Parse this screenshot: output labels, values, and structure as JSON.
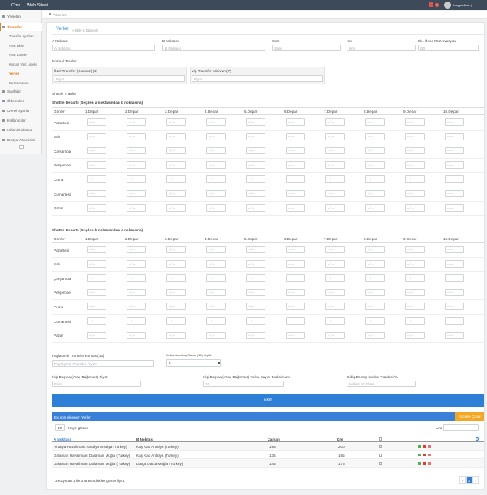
{
  "topbar": {
    "brand": "Cms",
    "site": "Web Sitesi",
    "badge": "3",
    "user": "Hoşgeldiniz |"
  },
  "sidebar": {
    "items": [
      "Yönetim",
      "Transfer",
      "Sayfalar",
      "Ödemeler",
      "Genel Ayarlar",
      "Kullanıcılar",
      "Video/Galeriler",
      "Dosya Yöneticisi"
    ],
    "submenu": [
      "Transfer Ayarları",
      "Araç Ekle",
      "Araç Listele",
      "Konum Yeri Listele",
      "Yerler",
      "Rezervasyon"
    ]
  },
  "breadcrumb": "Yönetim",
  "form": {
    "title": "Yerler",
    "subtitle": "» Ekle & Düzenle",
    "fields": [
      {
        "label": "A Noktası",
        "placeholder": "A Noktası"
      },
      {
        "label": "B Noktası",
        "placeholder": "B Noktası"
      },
      {
        "label": "Süre",
        "placeholder": "Süre"
      },
      {
        "label": "Km",
        "placeholder": "Km"
      },
      {
        "label": "Ek. Önce Rezervasyon",
        "placeholder": "00"
      }
    ],
    "normal_title": "Normal Tranfer",
    "vehicles": [
      {
        "label": "Özel Transfer (Sonsuz) (3)",
        "placeholder": "Fiyat"
      },
      {
        "label": "Vip Transfer Minivan (7)",
        "placeholder": "Fiyat"
      }
    ],
    "shuttle_title": "Shuttle Tranfer",
    "departure_tables": [
      "Shuttle Departı (Seçilen a noktasından b noktasına)",
      "Shuttle Departı (Seçilen b noktasından a noktasına)"
    ],
    "columns": [
      "Günler",
      "1.Depar",
      "2.Depar",
      "3.Depar",
      "4.Depar",
      "5.Depar",
      "6.Depar",
      "7.Depar",
      "8.Depar",
      "9.Depar",
      "10.Depar"
    ],
    "days": [
      "Pazartesi",
      "Salı",
      "Çarşamba",
      "Perşembe",
      "Cuma",
      "Cumartesi",
      "Pazar"
    ],
    "time_placeholder": "--:--",
    "shared": {
      "label": "Paylaşımlı Transfer Kontüs (15)",
      "placeholder": "Paylaşımlı Transfer Fiyatı"
    },
    "vehicle_count": {
      "label": "Kullanılan Araç Sayısı (15) Kişilik",
      "value": "5"
    },
    "per_person": [
      {
        "label": "Kişi Başına (Araç Bağımsız) Fiyat",
        "placeholder": "Fiyat"
      },
      {
        "label": "Kişi Başına (Araç Bağımsız) Yolcu Sayısı Maksimum",
        "placeholder": "15"
      },
      {
        "label": "Gidiş Dönüş İndirim Yüzdesi %",
        "placeholder": "İndirim Yüzdesi"
      }
    ],
    "submit": "Ekle"
  },
  "list": {
    "title": "En son eklenen Yerler",
    "export": "Excel'e Çıkar",
    "page_length": "10",
    "length_label": "Kayıt göster",
    "search_label": "Ara:",
    "columns": [
      "A Noktası",
      "B Noktası",
      "Zaman",
      "Km"
    ],
    "rows": [
      [
        "Antalya Havalimanı Antalya Antalya (Turkey)",
        "Kaş Kas Antalya (Turkey)",
        "195",
        "200"
      ],
      [
        "Dalaman Havalimanı Dalaman Muğla (Turkey)",
        "Kaş Kas Antalya (Turkey)",
        "135",
        "165"
      ],
      [
        "Dalaman Havalimanı Dalaman Muğla (Turkey)",
        "Datça Datca Muğla (Turkey)",
        "145",
        "175"
      ]
    ],
    "info": "3 Kayıttan 1 ile 3 arasındakiler gösteriliyor.",
    "pages": [
      "‹",
      "1",
      "›"
    ]
  }
}
